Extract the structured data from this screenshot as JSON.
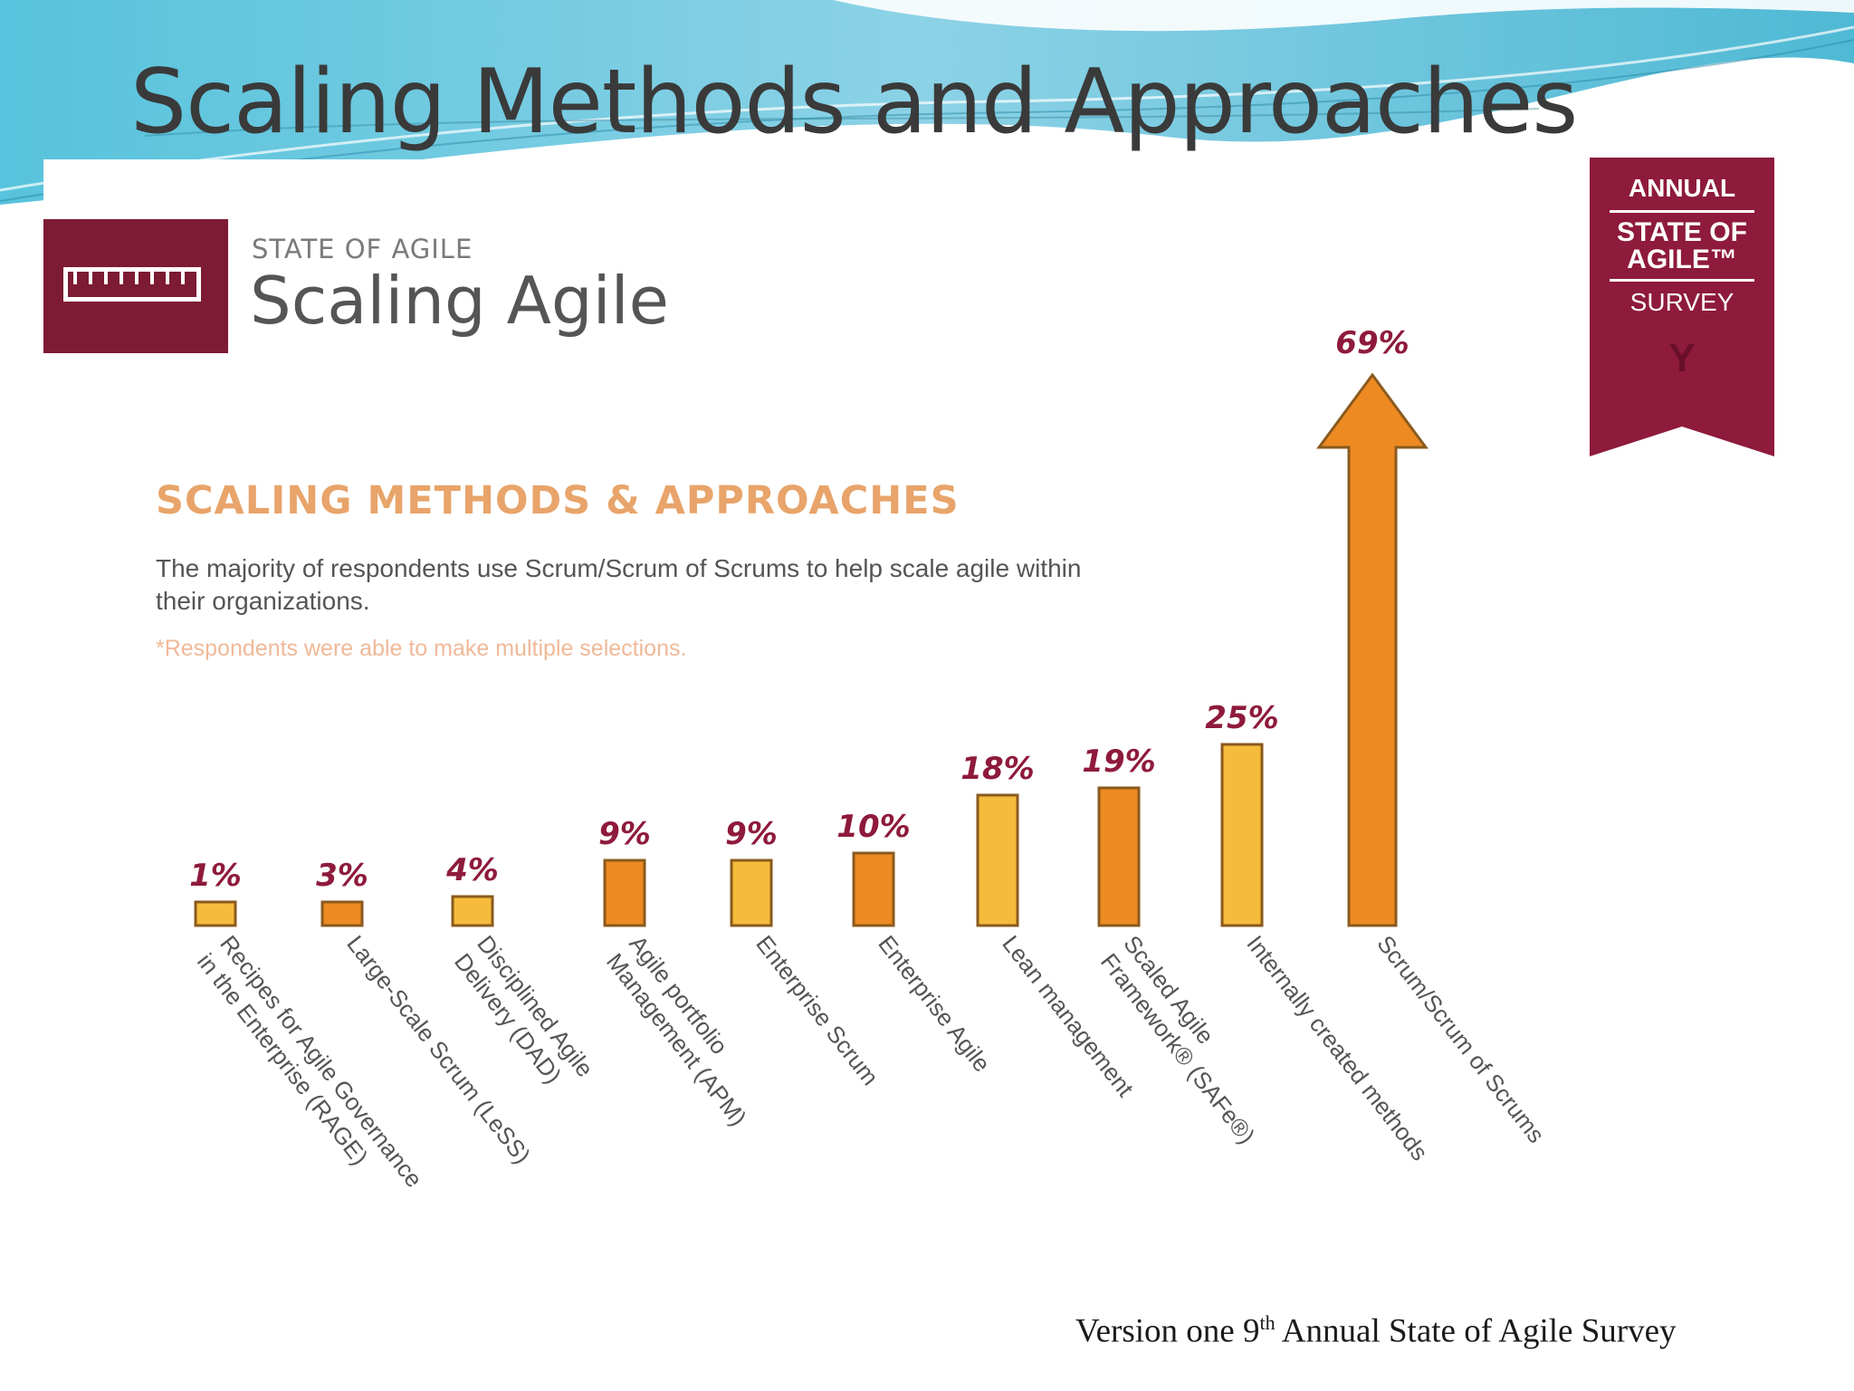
{
  "slide": {
    "title": "Scaling Methods and Approaches",
    "source": {
      "prefix": "Version one 9",
      "superscript": "th",
      "suffix": " Annual State of Agile Survey"
    }
  },
  "infographic": {
    "kicker": "STATE OF AGILE",
    "title": "Scaling Agile",
    "section_heading": "SCALING METHODS & APPROACHES",
    "description": "The majority of respondents use Scrum/Scrum of Scrums to help scale agile within their organizations.",
    "footnote": "*Respondents were able to make multiple selections."
  },
  "badge": {
    "line1": "ANNUAL",
    "line2": "STATE OF",
    "line3": "AGILE™",
    "line4": "SURVEY"
  },
  "icons": {
    "logo": "ruler-icon",
    "badge": "ribbon-badge-icon",
    "arrow": "up-arrow-icon"
  },
  "colors": {
    "maroon": "#7d1a34",
    "bar_light": "#f5bc3c",
    "bar_dark": "#ee8a22",
    "bar_outline": "#8a5a1e",
    "value_label": "#8e1a3c",
    "heading_orange": "#e8a46a",
    "footnote_orange": "#f0b998"
  },
  "chart_data": {
    "type": "bar",
    "title": "SCALING METHODS & APPROACHES",
    "xlabel": "",
    "ylabel": "",
    "ylim": [
      0,
      70
    ],
    "grid": false,
    "categories": [
      "Recipes for Agile Governance in the Enterprise (RAGE)",
      "Large-Scale Scrum (LeSS)",
      "Disciplined Agile Delivery (DAD)",
      "Agile portfolio Management (APM)",
      "Enterprise Scrum",
      "Enterprise Agile",
      "Lean management",
      "Scaled Agile Framework® (SAFe®)",
      "Internally created methods",
      "Scrum/Scrum of Scrums"
    ],
    "category_label_lines": [
      [
        "Recipes for Agile Governance",
        "in the Enterprise (RAGE)"
      ],
      [
        "Large-Scale Scrum (LeSS)"
      ],
      [
        "Disciplined Agile",
        "Delivery (DAD)"
      ],
      [
        "Agile portfolio",
        "Management (APM)"
      ],
      [
        "Enterprise Scrum"
      ],
      [
        "Enterprise Agile"
      ],
      [
        "Lean management"
      ],
      [
        "Scaled Agile",
        "Framework® (SAFe®)"
      ],
      [
        "Internally created methods"
      ],
      [
        "Scrum/Scrum of Scrums"
      ]
    ],
    "values": [
      1,
      3,
      4,
      9,
      9,
      10,
      18,
      19,
      25,
      69
    ],
    "value_labels": [
      "1%",
      "3%",
      "4%",
      "9%",
      "9%",
      "10%",
      "18%",
      "19%",
      "25%",
      "69%"
    ],
    "bar_styles": [
      "light",
      "dark",
      "light",
      "dark",
      "light",
      "dark",
      "light",
      "dark",
      "light",
      "arrow"
    ],
    "unit": "%"
  }
}
